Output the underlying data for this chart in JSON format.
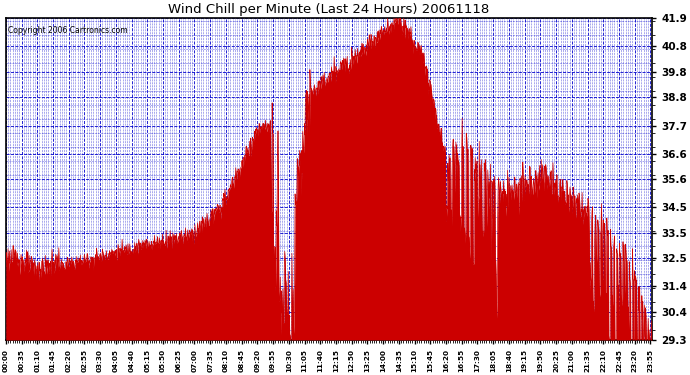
{
  "title": "Wind Chill per Minute (Last 24 Hours) 20061118",
  "copyright_text": "Copyright 2006 Cartronics.com",
  "y_ticks": [
    29.3,
    30.4,
    31.4,
    32.5,
    33.5,
    34.5,
    35.6,
    36.6,
    37.7,
    38.8,
    39.8,
    40.8,
    41.9
  ],
  "y_min": 29.3,
  "y_max": 41.9,
  "background_color": "#ffffff",
  "plot_bg_color": "#ffffff",
  "line_color": "#cc0000",
  "grid_color_major": "#0000cc",
  "grid_color_minor": "#0000cc",
  "title_color": "#000000",
  "x_tick_color": "#000000",
  "y_tick_color": "#000000",
  "border_color": "#000000",
  "x_tick_interval": 35,
  "total_minutes": 1440
}
